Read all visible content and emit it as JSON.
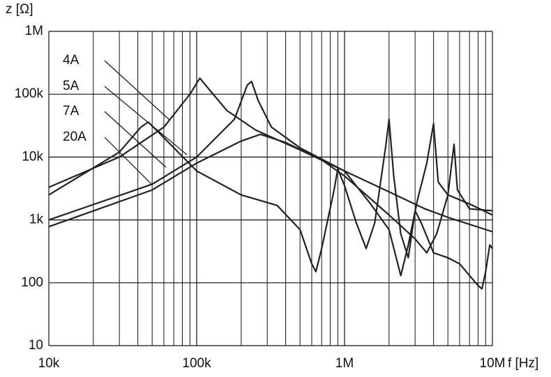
{
  "chart_data": {
    "type": "line",
    "xlabel": "f [Hz]",
    "ylabel": "z [Ω]",
    "xlog": true,
    "ylog": true,
    "grid": true,
    "xlim": [
      10000,
      10000000
    ],
    "ylim": [
      10,
      1000000
    ],
    "xticks": [
      {
        "value": 10000,
        "label": "10k"
      },
      {
        "value": 100000,
        "label": "100k"
      },
      {
        "value": 1000000,
        "label": "1M"
      },
      {
        "value": 10000000,
        "label": "10M"
      }
    ],
    "xminorticks": [
      20000,
      30000,
      40000,
      50000,
      60000,
      70000,
      80000,
      90000,
      200000,
      300000,
      400000,
      500000,
      600000,
      700000,
      800000,
      900000,
      2000000,
      3000000,
      4000000,
      5000000,
      6000000,
      7000000,
      8000000,
      9000000
    ],
    "yticks": [
      10,
      100,
      {
        "value": 1000,
        "label": "1k"
      },
      {
        "value": 10000,
        "label": "10k"
      },
      {
        "value": 100000,
        "label": "100k"
      },
      {
        "value": 1000000,
        "label": "1M"
      }
    ],
    "series": [
      {
        "name": "4A",
        "color": "#222222",
        "x": [
          10000,
          30000,
          60000,
          90000,
          105000,
          125000,
          160000,
          250000,
          500000,
          1000000,
          2000000,
          3500000,
          5000000,
          10000000
        ],
        "values": [
          3300,
          10000,
          30000,
          100000,
          180000,
          110000,
          55000,
          27000,
          13000,
          6000,
          2800,
          1500,
          1100,
          650
        ]
      },
      {
        "name": "5A",
        "color": "#222222",
        "x": [
          10000,
          30000,
          42000,
          47000,
          55000,
          100000,
          200000,
          350000,
          500000,
          600000,
          640000,
          700000,
          850000,
          900000,
          1000000,
          1200000,
          1400000,
          1600000,
          1900000,
          2000000,
          2150000,
          2400000,
          2700000,
          3000000,
          3300000,
          4000000,
          5000000,
          6000000,
          8000000,
          8500000,
          9000000,
          9600000,
          10000000
        ],
        "values": [
          2500,
          12000,
          30000,
          36000,
          25000,
          6000,
          2500,
          1700,
          700,
          200,
          150,
          350,
          3000,
          6500,
          3500,
          900,
          350,
          900,
          15000,
          40000,
          5000,
          600,
          250,
          1400,
          900,
          300,
          250,
          200,
          90,
          80,
          150,
          400,
          350
        ]
      },
      {
        "name": "7A",
        "color": "#222222",
        "x": [
          10000,
          50000,
          100000,
          180000,
          220000,
          235000,
          260000,
          320000,
          500000,
          1000000,
          1500000,
          2000000,
          2400000,
          2700000,
          3100000,
          3600000,
          4000000,
          4300000,
          5000000,
          7000000,
          10000000
        ],
        "values": [
          1000,
          3700,
          10000,
          40000,
          140000,
          160000,
          80000,
          30000,
          14000,
          6000,
          1800,
          700,
          130,
          400,
          2000,
          8000,
          34000,
          4000,
          2500,
          1800,
          1200
        ]
      },
      {
        "name": "20A",
        "color": "#222222",
        "x": [
          10000,
          50000,
          100000,
          200000,
          270000,
          400000,
          700000,
          1000000,
          1400000,
          2000000,
          3000000,
          3600000,
          4200000,
          5000000,
          5500000,
          5800000,
          7000000,
          10000000
        ],
        "values": [
          780,
          3000,
          8000,
          18000,
          23000,
          17000,
          9000,
          5000,
          2500,
          1200,
          500,
          300,
          600,
          2500,
          16000,
          3000,
          1500,
          1400
        ]
      }
    ]
  }
}
